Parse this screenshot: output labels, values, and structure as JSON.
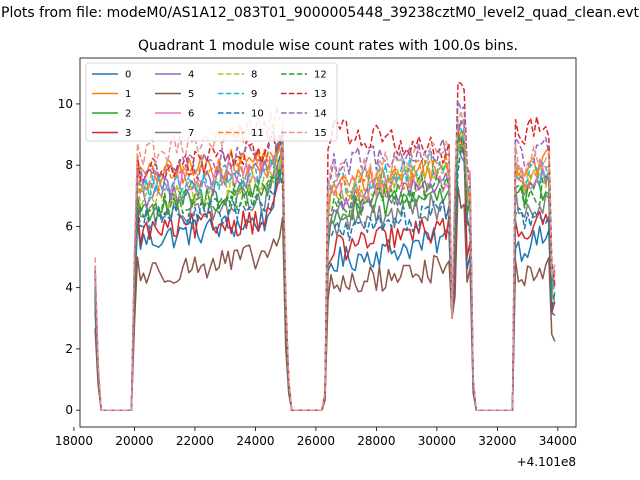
{
  "figure": {
    "suptitle": "Plots from file: modeM0/AS1A12_083T01_9000005448_39238cztM0_level2_quad_clean.evt"
  },
  "chart_data": {
    "type": "line",
    "title": "Quadrant 1 module wise count rates with 100.0s bins.",
    "xlabel": "",
    "ylabel": "",
    "x_offset_label": "+4.101e8",
    "xlim": [
      18200,
      34600
    ],
    "ylim": [
      -0.55,
      11.5
    ],
    "xticks": [
      18000,
      20000,
      22000,
      24000,
      26000,
      28000,
      30000,
      32000,
      34000
    ],
    "xtick_labels": [
      "18000",
      "20000",
      "22000",
      "24000",
      "26000",
      "28000",
      "30000",
      "32000",
      "34000"
    ],
    "yticks": [
      0,
      2,
      4,
      6,
      8,
      10
    ],
    "ytick_labels": [
      "0",
      "2",
      "4",
      "6",
      "8",
      "10"
    ],
    "bin_size_s": 100,
    "x_start": 18700,
    "x_end": 33900,
    "gaps": [
      [
        18900,
        19900
      ],
      [
        25200,
        26200
      ],
      [
        31300,
        32500
      ]
    ],
    "edge_values": {
      "18700": 0.58,
      "18800": 0.18,
      "20000": 0.6,
      "25000": 0.45,
      "25100": 0.12,
      "26300": 0.07,
      "30500": 0.88,
      "30600": 0.85,
      "31200": 0.12
    },
    "legend_location": "upper left",
    "series": [
      {
        "name": "0",
        "color": "#1f77b4",
        "style": "solid",
        "level": 5.6,
        "peak": 8.2,
        "spike": 9.0,
        "seg1": [
          5.5,
          6.3
        ],
        "seg2": [
          4.8,
          5.6
        ],
        "seg3": [
          5.2,
          5.8
        ]
      },
      {
        "name": "1",
        "color": "#ff7f0e",
        "style": "solid",
        "level": 7.9,
        "peak": 8.4,
        "spike": 9.2,
        "seg1": [
          7.6,
          8.3
        ],
        "seg2": [
          7.3,
          8.0
        ],
        "seg3": [
          7.8,
          8.2
        ]
      },
      {
        "name": "2",
        "color": "#2ca02c",
        "style": "solid",
        "level": 6.9,
        "peak": 8.6,
        "spike": 9.3,
        "seg1": [
          6.5,
          7.4
        ],
        "seg2": [
          6.3,
          7.2
        ],
        "seg3": [
          6.8,
          7.4
        ]
      },
      {
        "name": "3",
        "color": "#d62728",
        "style": "solid",
        "level": 6.1,
        "peak": 7.8,
        "spike": 8.6,
        "seg1": [
          5.8,
          6.3
        ],
        "seg2": [
          5.2,
          6.0
        ],
        "seg3": [
          5.8,
          6.2
        ]
      },
      {
        "name": "4",
        "color": "#9467bd",
        "style": "solid",
        "level": 7.4,
        "peak": 8.8,
        "spike": 9.1,
        "seg1": [
          7.0,
          7.8
        ],
        "seg2": [
          6.6,
          7.5
        ],
        "seg3": [
          7.2,
          7.7
        ]
      },
      {
        "name": "5",
        "color": "#8c564b",
        "style": "solid",
        "level": 4.6,
        "peak": 5.9,
        "spike": 7.0,
        "seg1": [
          4.4,
          5.1
        ],
        "seg2": [
          4.0,
          4.7
        ],
        "seg3": [
          4.3,
          4.6
        ]
      },
      {
        "name": "6",
        "color": "#e377c2",
        "style": "solid",
        "level": 7.6,
        "peak": 8.2,
        "spike": 8.8,
        "seg1": [
          7.3,
          7.9
        ],
        "seg2": [
          7.0,
          7.6
        ],
        "seg3": [
          7.5,
          7.9
        ]
      },
      {
        "name": "7",
        "color": "#7f7f7f",
        "style": "solid",
        "level": 6.6,
        "peak": 7.9,
        "spike": 8.4,
        "seg1": [
          6.3,
          7.0
        ],
        "seg2": [
          6.0,
          6.7
        ],
        "seg3": [
          6.5,
          7.0
        ]
      },
      {
        "name": "8",
        "color": "#bcbd22",
        "style": "dashed",
        "level": 7.2,
        "peak": 8.3,
        "spike": 8.9,
        "seg1": [
          6.9,
          7.5
        ],
        "seg2": [
          7.0,
          7.8
        ],
        "seg3": [
          7.3,
          7.7
        ]
      },
      {
        "name": "9",
        "color": "#17becf",
        "style": "dashed",
        "level": 7.5,
        "peak": 8.6,
        "spike": 9.0,
        "seg1": [
          7.2,
          7.9
        ],
        "seg2": [
          7.3,
          8.1
        ],
        "seg3": [
          7.6,
          7.9
        ]
      },
      {
        "name": "10",
        "color": "#1f77b4",
        "style": "dashed",
        "level": 6.4,
        "peak": 7.7,
        "spike": 8.2,
        "seg1": [
          6.1,
          6.8
        ],
        "seg2": [
          5.7,
          6.5
        ],
        "seg3": [
          6.2,
          6.6
        ]
      },
      {
        "name": "11",
        "color": "#ff7f0e",
        "style": "dashed",
        "level": 7.8,
        "peak": 8.5,
        "spike": 9.1,
        "seg1": [
          7.5,
          8.1
        ],
        "seg2": [
          7.2,
          7.9
        ],
        "seg3": [
          7.6,
          8.0
        ]
      },
      {
        "name": "12",
        "color": "#2ca02c",
        "style": "dashed",
        "level": 6.8,
        "peak": 8.0,
        "spike": 8.7,
        "seg1": [
          6.5,
          7.2
        ],
        "seg2": [
          6.6,
          7.4
        ],
        "seg3": [
          6.9,
          7.3
        ]
      },
      {
        "name": "13",
        "color": "#d62728",
        "style": "dashed",
        "level": 8.1,
        "peak": 8.9,
        "spike": 10.8,
        "seg1": [
          7.7,
          8.6
        ],
        "seg2": [
          9.2,
          8.4
        ],
        "seg3": [
          9.0,
          9.4
        ]
      },
      {
        "name": "14",
        "color": "#9467bd",
        "style": "dashed",
        "level": 7.9,
        "peak": 9.3,
        "spike": 9.8,
        "seg1": [
          7.6,
          8.5
        ],
        "seg2": [
          8.0,
          8.6
        ],
        "seg3": [
          8.3,
          8.6
        ]
      },
      {
        "name": "15",
        "color": "#e8968a",
        "style": "dashed",
        "level": 8.6,
        "peak": 9.8,
        "spike": 9.6,
        "seg1": [
          8.3,
          9.3
        ],
        "seg2": [
          7.6,
          8.4
        ],
        "seg3": [
          8.0,
          8.4
        ]
      }
    ]
  }
}
